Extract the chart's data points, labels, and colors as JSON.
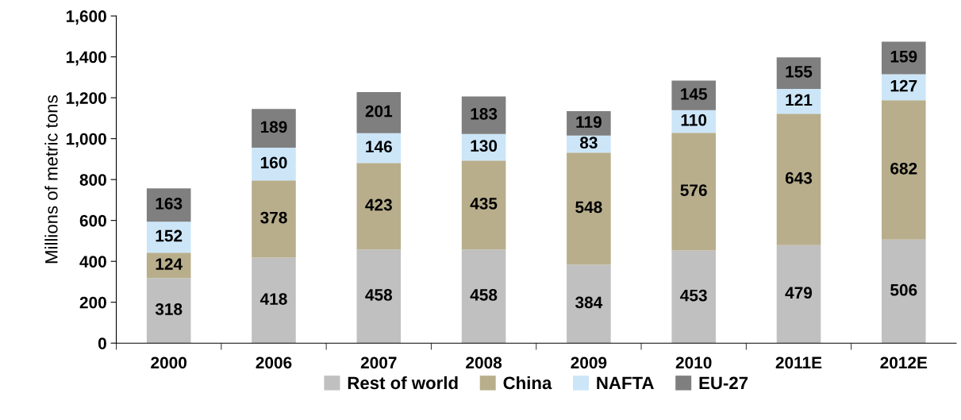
{
  "chart_data": {
    "type": "bar",
    "stacked": true,
    "ylabel": "Millions of metric tons",
    "categories": [
      "2000",
      "2006",
      "2007",
      "2008",
      "2009",
      "2010",
      "2011E",
      "2012E"
    ],
    "series": [
      {
        "name": "Rest of world",
        "color": "#c0c0c0",
        "values": [
          318,
          418,
          458,
          458,
          384,
          453,
          479,
          506
        ]
      },
      {
        "name": "China",
        "color": "#b8ae8c",
        "values": [
          124,
          378,
          423,
          435,
          548,
          576,
          643,
          682
        ]
      },
      {
        "name": "NAFTA",
        "color": "#cce6f8",
        "values": [
          152,
          160,
          146,
          130,
          83,
          110,
          121,
          127
        ]
      },
      {
        "name": "EU-27",
        "color": "#7f7f7f",
        "values": [
          163,
          189,
          201,
          183,
          119,
          145,
          155,
          159
        ]
      }
    ],
    "ylim": [
      0,
      1600
    ],
    "yticks": [
      0,
      {
        "value": 200,
        "label": "200"
      },
      {
        "value": 400,
        "label": "400"
      },
      {
        "value": 600,
        "label": "600"
      },
      {
        "value": 800,
        "label": "800"
      },
      {
        "value": 1000,
        "label": "1,000"
      },
      {
        "value": 1200,
        "label": "1,200"
      },
      {
        "value": 1400,
        "label": "1,400"
      },
      {
        "value": 1600,
        "label": "1,600"
      }
    ],
    "data_labels": true,
    "grid": false,
    "legend": "bottom"
  }
}
